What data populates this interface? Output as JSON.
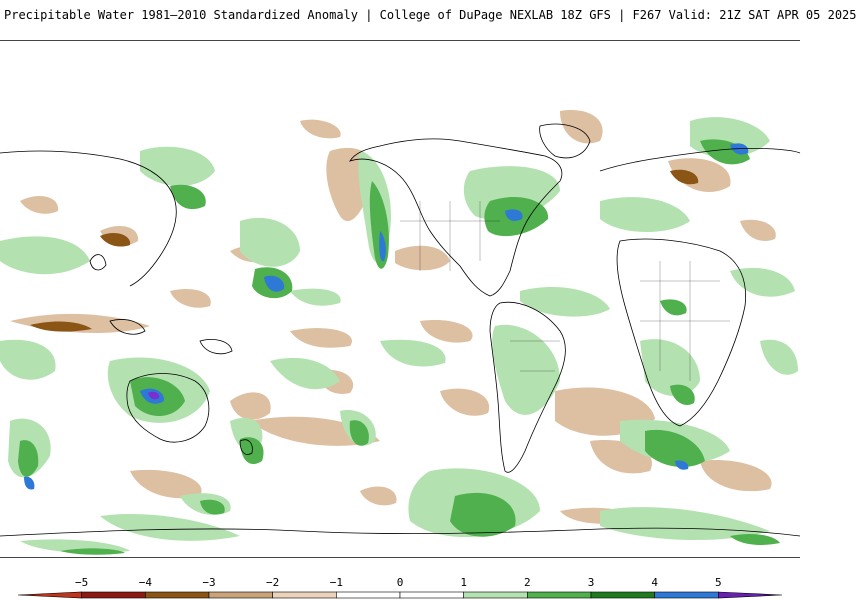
{
  "title": "Precipitable Water 1981–2010 Standardized Anomaly | College of DuPage NEXLAB   18Z GFS | F267 Valid: 21Z SAT APR 05 2025",
  "legend": {
    "tick_labels": [
      "−5",
      "−4",
      "−3",
      "−2",
      "−1",
      "0",
      "1",
      "2",
      "3",
      "4",
      "5"
    ],
    "colors": [
      "#c0341b",
      "#8b1a12",
      "#8b5516",
      "#c9a27a",
      "#ead2bb",
      "#ffffff",
      "#ffffff",
      "#b3e2b0",
      "#4fb04d",
      "#1f7a20",
      "#2e78d6",
      "#6a1fb3"
    ]
  },
  "map": {
    "projection": "equirectangular-global",
    "colors": {
      "negative_light": "#ddbfa2",
      "negative_mid": "#c79a70",
      "negative_dark": "#8b5516",
      "positive_light": "#b3e2b0",
      "positive_mid": "#4fb04d",
      "positive_dark": "#1f7a20",
      "positive_blue": "#2e78d6",
      "positive_purple": "#7a2fd0",
      "coastline": "#000000"
    }
  }
}
